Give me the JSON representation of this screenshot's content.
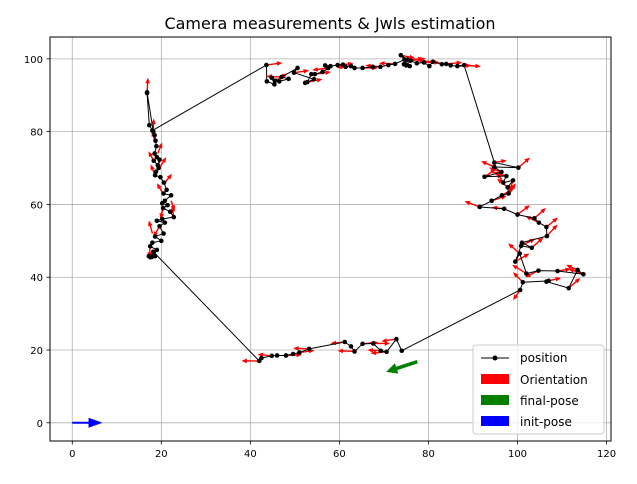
{
  "chart_data": {
    "type": "line",
    "title": "Camera measurements & Jwls estimation",
    "xlabel": "",
    "ylabel": "",
    "xlim": [
      -5,
      121
    ],
    "ylim": [
      -5,
      106
    ],
    "xticks": [
      0,
      20,
      40,
      60,
      80,
      100,
      120
    ],
    "yticks": [
      0,
      20,
      40,
      60,
      80,
      100
    ],
    "xtick_labels": [
      "0",
      "20",
      "40",
      "60",
      "80",
      "100",
      "120"
    ],
    "ytick_labels": [
      "0",
      "20",
      "40",
      "60",
      "80",
      "100"
    ],
    "grid": true,
    "legend_position": "lower-right",
    "legend": [
      {
        "label": "position",
        "kind": "line-marker",
        "color": "#000000"
      },
      {
        "label": "Orientation",
        "kind": "patch",
        "color": "#ff0000"
      },
      {
        "label": "final-pose",
        "kind": "patch",
        "color": "#008000"
      },
      {
        "label": "init-pose",
        "kind": "patch",
        "color": "#0000ff"
      }
    ],
    "series": [
      {
        "name": "position",
        "color": "#000000",
        "points": [
          [
            16.8,
            90.8
          ],
          [
            18.2,
            80.0
          ],
          [
            18.5,
            79.0
          ],
          [
            18.7,
            77.5
          ],
          [
            18.9,
            76.0
          ],
          [
            18.5,
            74.0
          ],
          [
            19.0,
            73.0
          ],
          [
            18.3,
            72.0
          ],
          [
            19.2,
            70.8
          ],
          [
            19.6,
            72.3
          ],
          [
            19.4,
            70.0
          ],
          [
            18.8,
            69.0
          ],
          [
            18.6,
            68.0
          ],
          [
            19.8,
            67.5
          ],
          [
            20.6,
            66.0
          ],
          [
            21.2,
            64.0
          ],
          [
            20.5,
            63.0
          ],
          [
            22.2,
            62.5
          ],
          [
            20.8,
            61.0
          ],
          [
            20.2,
            60.3
          ],
          [
            21.4,
            59.8
          ],
          [
            20.4,
            59.0
          ],
          [
            22.0,
            58.0
          ],
          [
            22.8,
            56.5
          ],
          [
            20.2,
            56.0
          ],
          [
            19.0,
            55.5
          ],
          [
            20.8,
            55.0
          ],
          [
            19.6,
            54.0
          ],
          [
            20.5,
            52.0
          ],
          [
            18.6,
            51.2
          ],
          [
            20.0,
            50.0
          ],
          [
            18.0,
            49.5
          ],
          [
            17.5,
            48.5
          ],
          [
            19.0,
            47.5
          ],
          [
            18.3,
            46.8
          ],
          [
            18.6,
            45.8
          ],
          [
            17.9,
            45.6
          ],
          [
            17.2,
            45.8
          ],
          [
            17.5,
            45.5
          ],
          [
            18.2,
            47.0
          ],
          [
            42.0,
            17.0
          ],
          [
            42.5,
            17.8
          ],
          [
            44.8,
            18.4
          ],
          [
            46.0,
            18.5
          ],
          [
            48.0,
            18.5
          ],
          [
            49.6,
            18.9
          ],
          [
            51.0,
            19.3
          ],
          [
            53.2,
            20.3
          ],
          [
            61.2,
            22.2
          ],
          [
            62.6,
            21.0
          ],
          [
            63.4,
            19.6
          ],
          [
            65.2,
            21.7
          ],
          [
            67.6,
            21.8
          ],
          [
            69.3,
            19.8
          ],
          [
            70.6,
            19.5
          ],
          [
            72.8,
            23.0
          ],
          [
            74.0,
            19.8
          ],
          [
            100.6,
            36.5
          ],
          [
            101.2,
            38.6
          ],
          [
            107.0,
            39.0
          ],
          [
            106.5,
            38.8
          ],
          [
            111.5,
            37.0
          ],
          [
            113.5,
            42.0
          ],
          [
            114.8,
            40.8
          ],
          [
            109.0,
            41.7
          ],
          [
            104.7,
            41.8
          ],
          [
            102.0,
            41.0
          ],
          [
            100.5,
            46.5
          ],
          [
            99.5,
            44.3
          ],
          [
            100.8,
            48.6
          ],
          [
            103.2,
            48.1
          ],
          [
            101.0,
            49.5
          ],
          [
            106.6,
            51.3
          ],
          [
            106.5,
            53.8
          ],
          [
            104.8,
            55.0
          ],
          [
            103.8,
            56.2
          ],
          [
            100.0,
            57.2
          ],
          [
            97.0,
            58.8
          ],
          [
            91.5,
            59.3
          ],
          [
            94.2,
            61.0
          ],
          [
            96.5,
            62.5
          ],
          [
            98.0,
            63.0
          ],
          [
            97.8,
            64.7
          ],
          [
            99.0,
            66.6
          ],
          [
            96.8,
            66.0
          ],
          [
            97.5,
            67.8
          ],
          [
            92.6,
            67.6
          ],
          [
            96.4,
            68.9
          ],
          [
            94.8,
            70.3
          ],
          [
            100.2,
            70.1
          ],
          [
            94.8,
            71.5
          ],
          [
            88.0,
            98.3
          ],
          [
            86.5,
            98.0
          ],
          [
            85.0,
            98.2
          ],
          [
            84.0,
            98.6
          ],
          [
            83.0,
            98.5
          ],
          [
            81.0,
            99.2
          ],
          [
            80.2,
            98.0
          ],
          [
            79.0,
            99.0
          ],
          [
            77.4,
            98.8
          ],
          [
            76.0,
            99.5
          ],
          [
            75.0,
            98.2
          ],
          [
            74.5,
            98.5
          ],
          [
            75.3,
            99.8
          ],
          [
            73.8,
            101.0
          ],
          [
            75.8,
            98.0
          ],
          [
            74.6,
            99.8
          ],
          [
            72.5,
            98.6
          ],
          [
            71.0,
            98.3
          ],
          [
            69.2,
            97.8
          ],
          [
            67.5,
            97.8
          ],
          [
            65.2,
            97.5
          ],
          [
            63.4,
            97.5
          ],
          [
            62.6,
            98.0
          ],
          [
            61.4,
            97.8
          ],
          [
            60.8,
            98.4
          ],
          [
            59.6,
            98.3
          ],
          [
            58.0,
            98.0
          ],
          [
            56.8,
            98.2
          ],
          [
            57.5,
            97.5
          ],
          [
            56.2,
            96.4
          ],
          [
            54.5,
            95.8
          ],
          [
            53.7,
            95.8
          ],
          [
            52.8,
            93.6
          ],
          [
            52.3,
            93.4
          ],
          [
            54.3,
            94.4
          ],
          [
            49.8,
            96.2
          ],
          [
            50.6,
            97.5
          ],
          [
            47.0,
            95.0
          ],
          [
            48.6,
            94.5
          ],
          [
            46.5,
            93.8
          ],
          [
            45.6,
            94.0
          ],
          [
            44.8,
            94.8
          ],
          [
            45.4,
            93.0
          ],
          [
            43.7,
            93.8
          ],
          [
            43.6,
            98.3
          ],
          [
            18.0,
            80.3
          ],
          [
            17.3,
            81.8
          ],
          [
            16.8,
            90.6
          ]
        ]
      }
    ],
    "orientation_arrows": {
      "color": "#ff0000",
      "label": "Orientation",
      "arrows": [
        [
          16.8,
          90.8,
          0.2,
          4.0
        ],
        [
          18.2,
          80.0,
          0.1,
          3.6
        ],
        [
          18.6,
          77.0,
          -0.6,
          3.2
        ],
        [
          19.2,
          74.0,
          1.0,
          3.0
        ],
        [
          18.3,
          72.0,
          -1.2,
          2.6
        ],
        [
          19.6,
          70.0,
          1.5,
          3.0
        ],
        [
          18.6,
          68.0,
          -1.0,
          3.0
        ],
        [
          20.8,
          66.0,
          1.6,
          2.4
        ],
        [
          20.4,
          63.0,
          -1.4,
          2.8
        ],
        [
          22.2,
          61.0,
          0.8,
          -2.8
        ],
        [
          20.4,
          59.0,
          -0.6,
          -3.0
        ],
        [
          22.8,
          56.5,
          -0.4,
          3.0
        ],
        [
          19.6,
          54.0,
          -1.4,
          -3.0
        ],
        [
          18.0,
          52.0,
          -0.8,
          3.6
        ],
        [
          17.5,
          48.5,
          -0.2,
          -3.2
        ],
        [
          18.6,
          45.8,
          -1.5,
          0.0
        ],
        [
          42.0,
          17.0,
          -4.0,
          0.0
        ],
        [
          44.8,
          18.4,
          -3.2,
          0.4
        ],
        [
          48.0,
          18.5,
          3.6,
          0.2
        ],
        [
          51.0,
          19.3,
          3.4,
          0.6
        ],
        [
          53.2,
          20.3,
          -3.6,
          0.2
        ],
        [
          61.2,
          22.2,
          -3.2,
          -0.4
        ],
        [
          63.4,
          19.6,
          -3.8,
          0.2
        ],
        [
          65.2,
          21.7,
          3.6,
          0.4
        ],
        [
          67.6,
          21.8,
          3.8,
          0.0
        ],
        [
          69.3,
          19.8,
          -3.0,
          0.2
        ],
        [
          70.6,
          19.5,
          -3.6,
          -0.4
        ],
        [
          72.8,
          23.0,
          -3.4,
          -0.6
        ],
        [
          100.6,
          36.5,
          -1.6,
          -2.8
        ],
        [
          101.2,
          38.6,
          -2.2,
          2.8
        ],
        [
          107.0,
          39.0,
          2.8,
          0.8
        ],
        [
          111.5,
          37.0,
          2.6,
          2.8
        ],
        [
          113.5,
          42.0,
          -2.6,
          1.4
        ],
        [
          114.8,
          40.8,
          -3.4,
          1.6
        ],
        [
          109.0,
          41.7,
          3.0,
          0.6
        ],
        [
          104.7,
          41.8,
          -3.0,
          -1.8
        ],
        [
          102.0,
          41.0,
          -3.2,
          2.4
        ],
        [
          100.5,
          46.5,
          -2.6,
          2.8
        ],
        [
          99.5,
          44.3,
          3.2,
          2.2
        ],
        [
          100.8,
          48.6,
          3.2,
          2.0
        ],
        [
          103.2,
          48.1,
          2.6,
          2.8
        ],
        [
          106.6,
          51.3,
          2.4,
          3.2
        ],
        [
          106.5,
          53.8,
          2.6,
          2.6
        ],
        [
          104.8,
          55.0,
          -3.0,
          1.8
        ],
        [
          103.8,
          56.2,
          2.6,
          2.8
        ],
        [
          100.0,
          57.2,
          2.8,
          2.6
        ],
        [
          97.0,
          58.8,
          -2.8,
          0.4
        ],
        [
          91.5,
          59.3,
          -3.4,
          1.6
        ],
        [
          94.2,
          61.0,
          3.4,
          1.4
        ],
        [
          96.5,
          62.5,
          2.8,
          2.0
        ],
        [
          98.0,
          63.0,
          1.6,
          2.8
        ],
        [
          97.8,
          64.7,
          -2.4,
          2.4
        ],
        [
          99.0,
          66.6,
          -0.8,
          -3.0
        ],
        [
          96.8,
          66.0,
          -1.4,
          2.8
        ],
        [
          97.5,
          67.8,
          -3.0,
          1.0
        ],
        [
          92.6,
          67.6,
          2.6,
          2.2
        ],
        [
          96.4,
          68.9,
          -2.8,
          1.2
        ],
        [
          94.8,
          70.3,
          -3.0,
          1.6
        ],
        [
          100.2,
          70.1,
          2.6,
          2.8
        ],
        [
          94.8,
          71.5,
          2.8,
          0.6
        ],
        [
          88.0,
          98.3,
          3.8,
          -0.4
        ],
        [
          86.5,
          98.0,
          3.2,
          0.2
        ],
        [
          84.0,
          98.6,
          3.6,
          0.4
        ],
        [
          81.0,
          99.2,
          -3.6,
          0.4
        ],
        [
          79.0,
          99.0,
          3.6,
          0.0
        ],
        [
          76.0,
          99.5,
          3.4,
          0.6
        ],
        [
          75.3,
          99.8,
          3.6,
          0.2
        ],
        [
          73.8,
          101.0,
          3.2,
          -0.8
        ],
        [
          72.5,
          98.6,
          -3.6,
          0.2
        ],
        [
          69.2,
          97.8,
          -3.4,
          0.4
        ],
        [
          65.2,
          97.5,
          3.4,
          0.0
        ],
        [
          62.6,
          98.0,
          -3.2,
          -0.4
        ],
        [
          59.6,
          98.3,
          3.6,
          0.4
        ],
        [
          57.5,
          97.5,
          -3.6,
          -0.6
        ],
        [
          54.5,
          95.8,
          3.6,
          0.6
        ],
        [
          52.8,
          93.6,
          3.4,
          0.8
        ],
        [
          49.8,
          96.2,
          3.4,
          0.6
        ],
        [
          47.0,
          95.0,
          -3.4,
          0.2
        ],
        [
          45.6,
          94.0,
          2.8,
          2.0
        ],
        [
          43.6,
          98.3,
          3.6,
          0.6
        ]
      ]
    },
    "final_pose": {
      "label": "final-pose",
      "color": "#008000",
      "point": [
        77.5,
        16.8
      ],
      "direction": [
        -7.0,
        -2.8
      ]
    },
    "init_pose": {
      "label": "init-pose",
      "color": "#0000ff",
      "point": [
        0.0,
        0.0
      ],
      "direction": [
        6.8,
        0.0
      ]
    }
  }
}
